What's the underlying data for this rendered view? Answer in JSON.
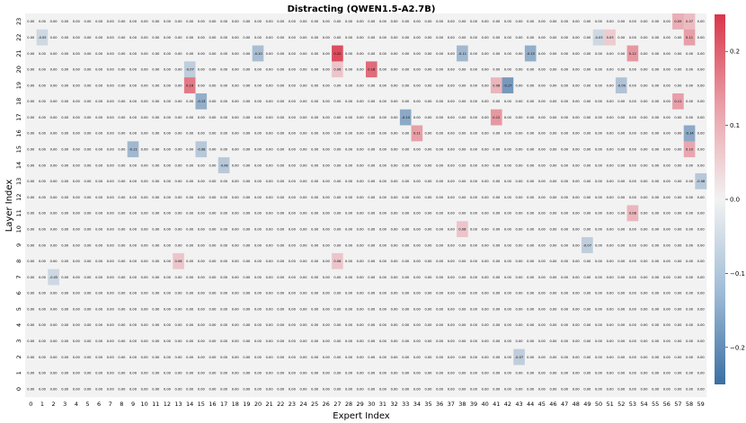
{
  "chart_data": {
    "type": "heatmap",
    "title": "Distracting  (QWEN1.5-A2.7B)",
    "xlabel": "Expert Index",
    "ylabel": "Layer Index",
    "x_categories": [
      "0",
      "1",
      "2",
      "3",
      "4",
      "5",
      "6",
      "7",
      "8",
      "9",
      "10",
      "11",
      "12",
      "13",
      "14",
      "15",
      "16",
      "17",
      "18",
      "19",
      "20",
      "21",
      "22",
      "23",
      "24",
      "25",
      "26",
      "27",
      "28",
      "29",
      "30",
      "31",
      "32",
      "33",
      "34",
      "35",
      "36",
      "37",
      "38",
      "39",
      "40",
      "41",
      "42",
      "43",
      "44",
      "45",
      "46",
      "47",
      "48",
      "49",
      "50",
      "51",
      "52",
      "53",
      "54",
      "55",
      "56",
      "57",
      "58",
      "59"
    ],
    "y_categories": [
      "0",
      "1",
      "2",
      "3",
      "4",
      "5",
      "6",
      "7",
      "8",
      "9",
      "10",
      "11",
      "12",
      "13",
      "14",
      "15",
      "16",
      "17",
      "18",
      "19",
      "20",
      "21",
      "22",
      "23"
    ],
    "colorbar": {
      "min": -0.25,
      "max": 0.25,
      "ticks": [
        -0.2,
        -0.1,
        0.0,
        0.1,
        0.2
      ],
      "cmap": "diverging blue-white-red",
      "low_color": "#3b6fa3",
      "mid_color": "#f2f2f2",
      "high_color": "#d9364a"
    },
    "highlights": [
      {
        "layer": 23,
        "expert": 57,
        "value": 0.09
      },
      {
        "layer": 23,
        "expert": 58,
        "value": 0.07
      },
      {
        "layer": 22,
        "expert": 1,
        "value": -0.05
      },
      {
        "layer": 22,
        "expert": 50,
        "value": -0.05
      },
      {
        "layer": 22,
        "expert": 51,
        "value": 0.05
      },
      {
        "layer": 22,
        "expert": 58,
        "value": 0.11
      },
      {
        "layer": 21,
        "expert": 27,
        "value": 0.22
      },
      {
        "layer": 21,
        "expert": 44,
        "value": -0.13
      },
      {
        "layer": 21,
        "expert": 38,
        "value": -0.11
      },
      {
        "layer": 21,
        "expert": 53,
        "value": 0.12
      },
      {
        "layer": 21,
        "expert": 20,
        "value": -0.1
      },
      {
        "layer": 20,
        "expert": 30,
        "value": 0.18
      },
      {
        "layer": 20,
        "expert": 27,
        "value": 0.06
      },
      {
        "layer": 20,
        "expert": 14,
        "value": -0.07
      },
      {
        "layer": 19,
        "expert": 14,
        "value": 0.16
      },
      {
        "layer": 19,
        "expert": 42,
        "value": -0.17
      },
      {
        "layer": 19,
        "expert": 41,
        "value": 0.08
      },
      {
        "layer": 19,
        "expert": 52,
        "value": -0.09
      },
      {
        "layer": 18,
        "expert": 15,
        "value": -0.13
      },
      {
        "layer": 18,
        "expert": 57,
        "value": 0.11
      },
      {
        "layer": 17,
        "expert": 33,
        "value": -0.14
      },
      {
        "layer": 17,
        "expert": 41,
        "value": 0.12
      },
      {
        "layer": 16,
        "expert": 34,
        "value": 0.11
      },
      {
        "layer": 16,
        "expert": 58,
        "value": -0.14
      },
      {
        "layer": 15,
        "expert": 9,
        "value": -0.11
      },
      {
        "layer": 15,
        "expert": 15,
        "value": -0.08
      },
      {
        "layer": 15,
        "expert": 58,
        "value": 0.1
      },
      {
        "layer": 14,
        "expert": 17,
        "value": -0.08
      },
      {
        "layer": 13,
        "expert": 59,
        "value": -0.08
      },
      {
        "layer": 11,
        "expert": 53,
        "value": 0.08
      },
      {
        "layer": 10,
        "expert": 38,
        "value": 0.06
      },
      {
        "layer": 9,
        "expert": 49,
        "value": -0.07
      },
      {
        "layer": 8,
        "expert": 13,
        "value": 0.06
      },
      {
        "layer": 8,
        "expert": 27,
        "value": 0.06
      },
      {
        "layer": 7,
        "expert": 2,
        "value": -0.05
      },
      {
        "layer": 2,
        "expert": 43,
        "value": -0.07
      }
    ]
  }
}
